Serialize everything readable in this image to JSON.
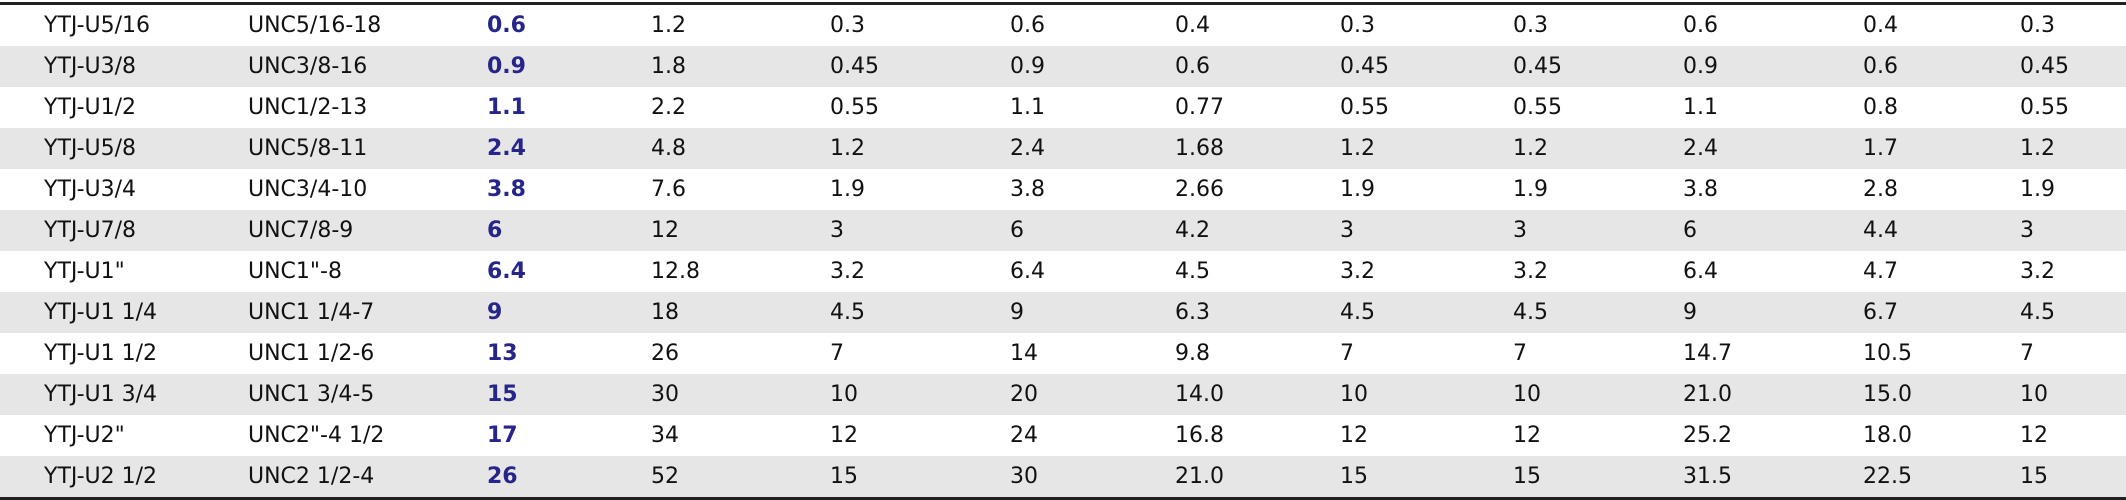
{
  "accent_color": "#26268a",
  "highlight_column_index": 2,
  "rows": [
    [
      "YTJ-U5/16",
      "UNC5/16-18",
      "0.6",
      "1.2",
      "0.3",
      "0.6",
      "0.4",
      "0.3",
      "0.3",
      "0.6",
      "0.4",
      "0.3"
    ],
    [
      "YTJ-U3/8",
      "UNC3/8-16",
      "0.9",
      "1.8",
      "0.45",
      "0.9",
      "0.6",
      "0.45",
      "0.45",
      "0.9",
      "0.6",
      "0.45"
    ],
    [
      "YTJ-U1/2",
      "UNC1/2-13",
      "1.1",
      "2.2",
      "0.55",
      "1.1",
      "0.77",
      "0.55",
      "0.55",
      "1.1",
      "0.8",
      "0.55"
    ],
    [
      "YTJ-U5/8",
      "UNC5/8-11",
      "2.4",
      "4.8",
      "1.2",
      "2.4",
      "1.68",
      "1.2",
      "1.2",
      "2.4",
      "1.7",
      "1.2"
    ],
    [
      "YTJ-U3/4",
      "UNC3/4-10",
      "3.8",
      "7.6",
      "1.9",
      "3.8",
      "2.66",
      "1.9",
      "1.9",
      "3.8",
      "2.8",
      "1.9"
    ],
    [
      "YTJ-U7/8",
      "UNC7/8-9",
      "6",
      "12",
      "3",
      "6",
      "4.2",
      "3",
      "3",
      "6",
      "4.4",
      "3"
    ],
    [
      "YTJ-U1\"",
      "UNC1\"-8",
      "6.4",
      "12.8",
      "3.2",
      "6.4",
      "4.5",
      "3.2",
      "3.2",
      "6.4",
      "4.7",
      "3.2"
    ],
    [
      "YTJ-U1 1/4",
      "UNC1 1/4-7",
      "9",
      "18",
      "4.5",
      "9",
      "6.3",
      "4.5",
      "4.5",
      "9",
      "6.7",
      "4.5"
    ],
    [
      "YTJ-U1 1/2",
      "UNC1 1/2-6",
      "13",
      "26",
      "7",
      "14",
      "9.8",
      "7",
      "7",
      "14.7",
      "10.5",
      "7"
    ],
    [
      "YTJ-U1 3/4",
      "UNC1 3/4-5",
      "15",
      "30",
      "10",
      "20",
      "14.0",
      "10",
      "10",
      "21.0",
      "15.0",
      "10"
    ],
    [
      "YTJ-U2\"",
      "UNC2\"-4 1/2",
      "17",
      "34",
      "12",
      "24",
      "16.8",
      "12",
      "12",
      "25.2",
      "18.0",
      "12"
    ],
    [
      "YTJ-U2 1/2",
      "UNC2 1/2-4",
      "26",
      "52",
      "15",
      "30",
      "21.0",
      "15",
      "15",
      "31.5",
      "22.5",
      "15"
    ]
  ]
}
